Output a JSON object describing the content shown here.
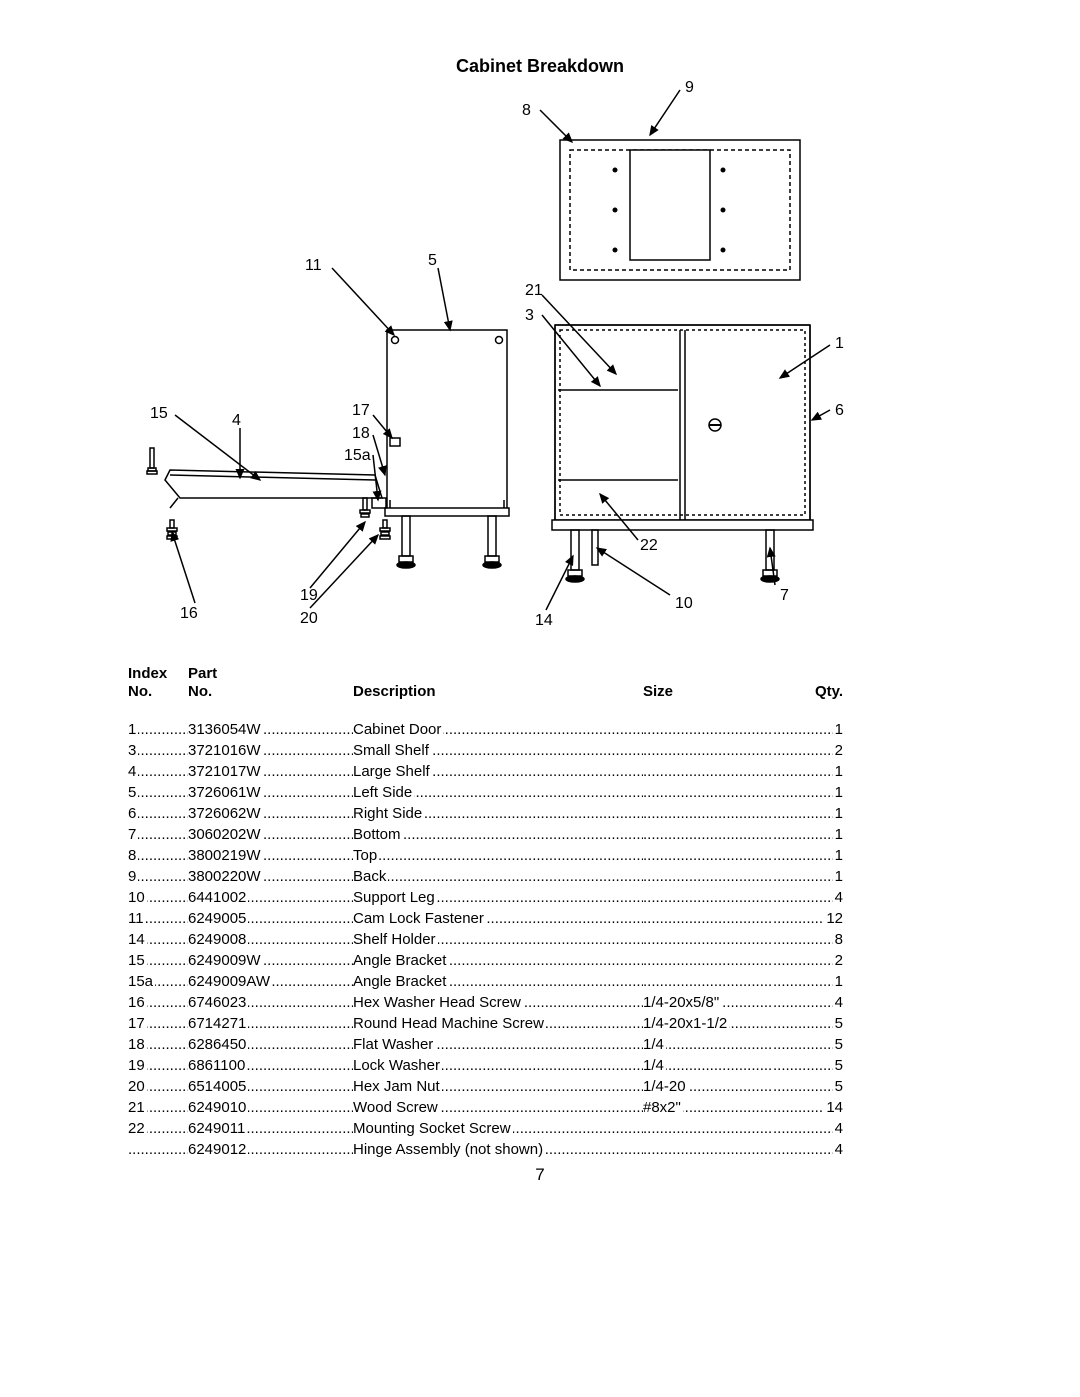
{
  "title": "Cabinet Breakdown",
  "page_number": "7",
  "table": {
    "headers": {
      "index1": "Index",
      "index2": "No.",
      "part1": "Part",
      "part2": "No.",
      "description": "Description",
      "size": "Size",
      "qty": "Qty."
    },
    "rows": [
      {
        "index": "1",
        "part": "3136054W",
        "desc": "Cabinet Door",
        "size": "",
        "qty": "1"
      },
      {
        "index": "3",
        "part": "3721016W",
        "desc": "Small Shelf",
        "size": "",
        "qty": "2"
      },
      {
        "index": "4",
        "part": "3721017W",
        "desc": "Large Shelf",
        "size": "",
        "qty": "1"
      },
      {
        "index": "5",
        "part": "3726061W",
        "desc": "Left Side",
        "size": "",
        "qty": "1"
      },
      {
        "index": "6",
        "part": "3726062W",
        "desc": "Right Side",
        "size": "",
        "qty": "1"
      },
      {
        "index": "7",
        "part": "3060202W",
        "desc": "Bottom",
        "size": "",
        "qty": "1"
      },
      {
        "index": "8",
        "part": "3800219W",
        "desc": "Top",
        "size": "",
        "qty": "1"
      },
      {
        "index": "9",
        "part": "3800220W",
        "desc": "Back",
        "size": "",
        "qty": "1"
      },
      {
        "index": "10",
        "part": "6441002",
        "desc": "Support Leg",
        "size": "",
        "qty": "4"
      },
      {
        "index": "11",
        "part": "6249005",
        "desc": "Cam Lock Fastener",
        "size": "",
        "qty": "12"
      },
      {
        "index": "14",
        "part": "6249008",
        "desc": "Shelf Holder",
        "size": "",
        "qty": "8"
      },
      {
        "index": "15",
        "part": "6249009W",
        "desc": "Angle Bracket",
        "size": "",
        "qty": "2"
      },
      {
        "index": "15a",
        "part": "6249009AW",
        "desc": "Angle Bracket",
        "size": "",
        "qty": "1"
      },
      {
        "index": "16",
        "part": "6746023",
        "desc": "Hex Washer Head Screw",
        "size": "1/4-20x5/8\"",
        "qty": "4"
      },
      {
        "index": "17",
        "part": "6714271",
        "desc": "Round Head Machine Screw",
        "size": "1/4-20x1-1/2",
        "qty": "5"
      },
      {
        "index": "18",
        "part": "6286450",
        "desc": "Flat Washer",
        "size": "1/4",
        "qty": "5"
      },
      {
        "index": "19",
        "part": "6861100",
        "desc": "Lock Washer",
        "size": "1/4",
        "qty": "5"
      },
      {
        "index": "20",
        "part": "6514005",
        "desc": "Hex Jam Nut",
        "size": "1/4-20",
        "qty": "5"
      },
      {
        "index": "21",
        "part": "6249010",
        "desc": "Wood Screw",
        "size": "#8x2\"",
        "qty": "14"
      },
      {
        "index": "22",
        "part": "6249011",
        "desc": "Mounting Socket Screw",
        "size": "",
        "qty": "4"
      },
      {
        "index": "",
        "part": "6249012",
        "desc": "Hinge Assembly (not shown)",
        "size": "",
        "qty": "4"
      }
    ]
  },
  "diagram": {
    "callouts": [
      "1",
      "3",
      "4",
      "5",
      "6",
      "7",
      "8",
      "9",
      "10",
      "11",
      "14",
      "15",
      "15a",
      "16",
      "17",
      "18",
      "19",
      "20",
      "21",
      "22"
    ]
  }
}
